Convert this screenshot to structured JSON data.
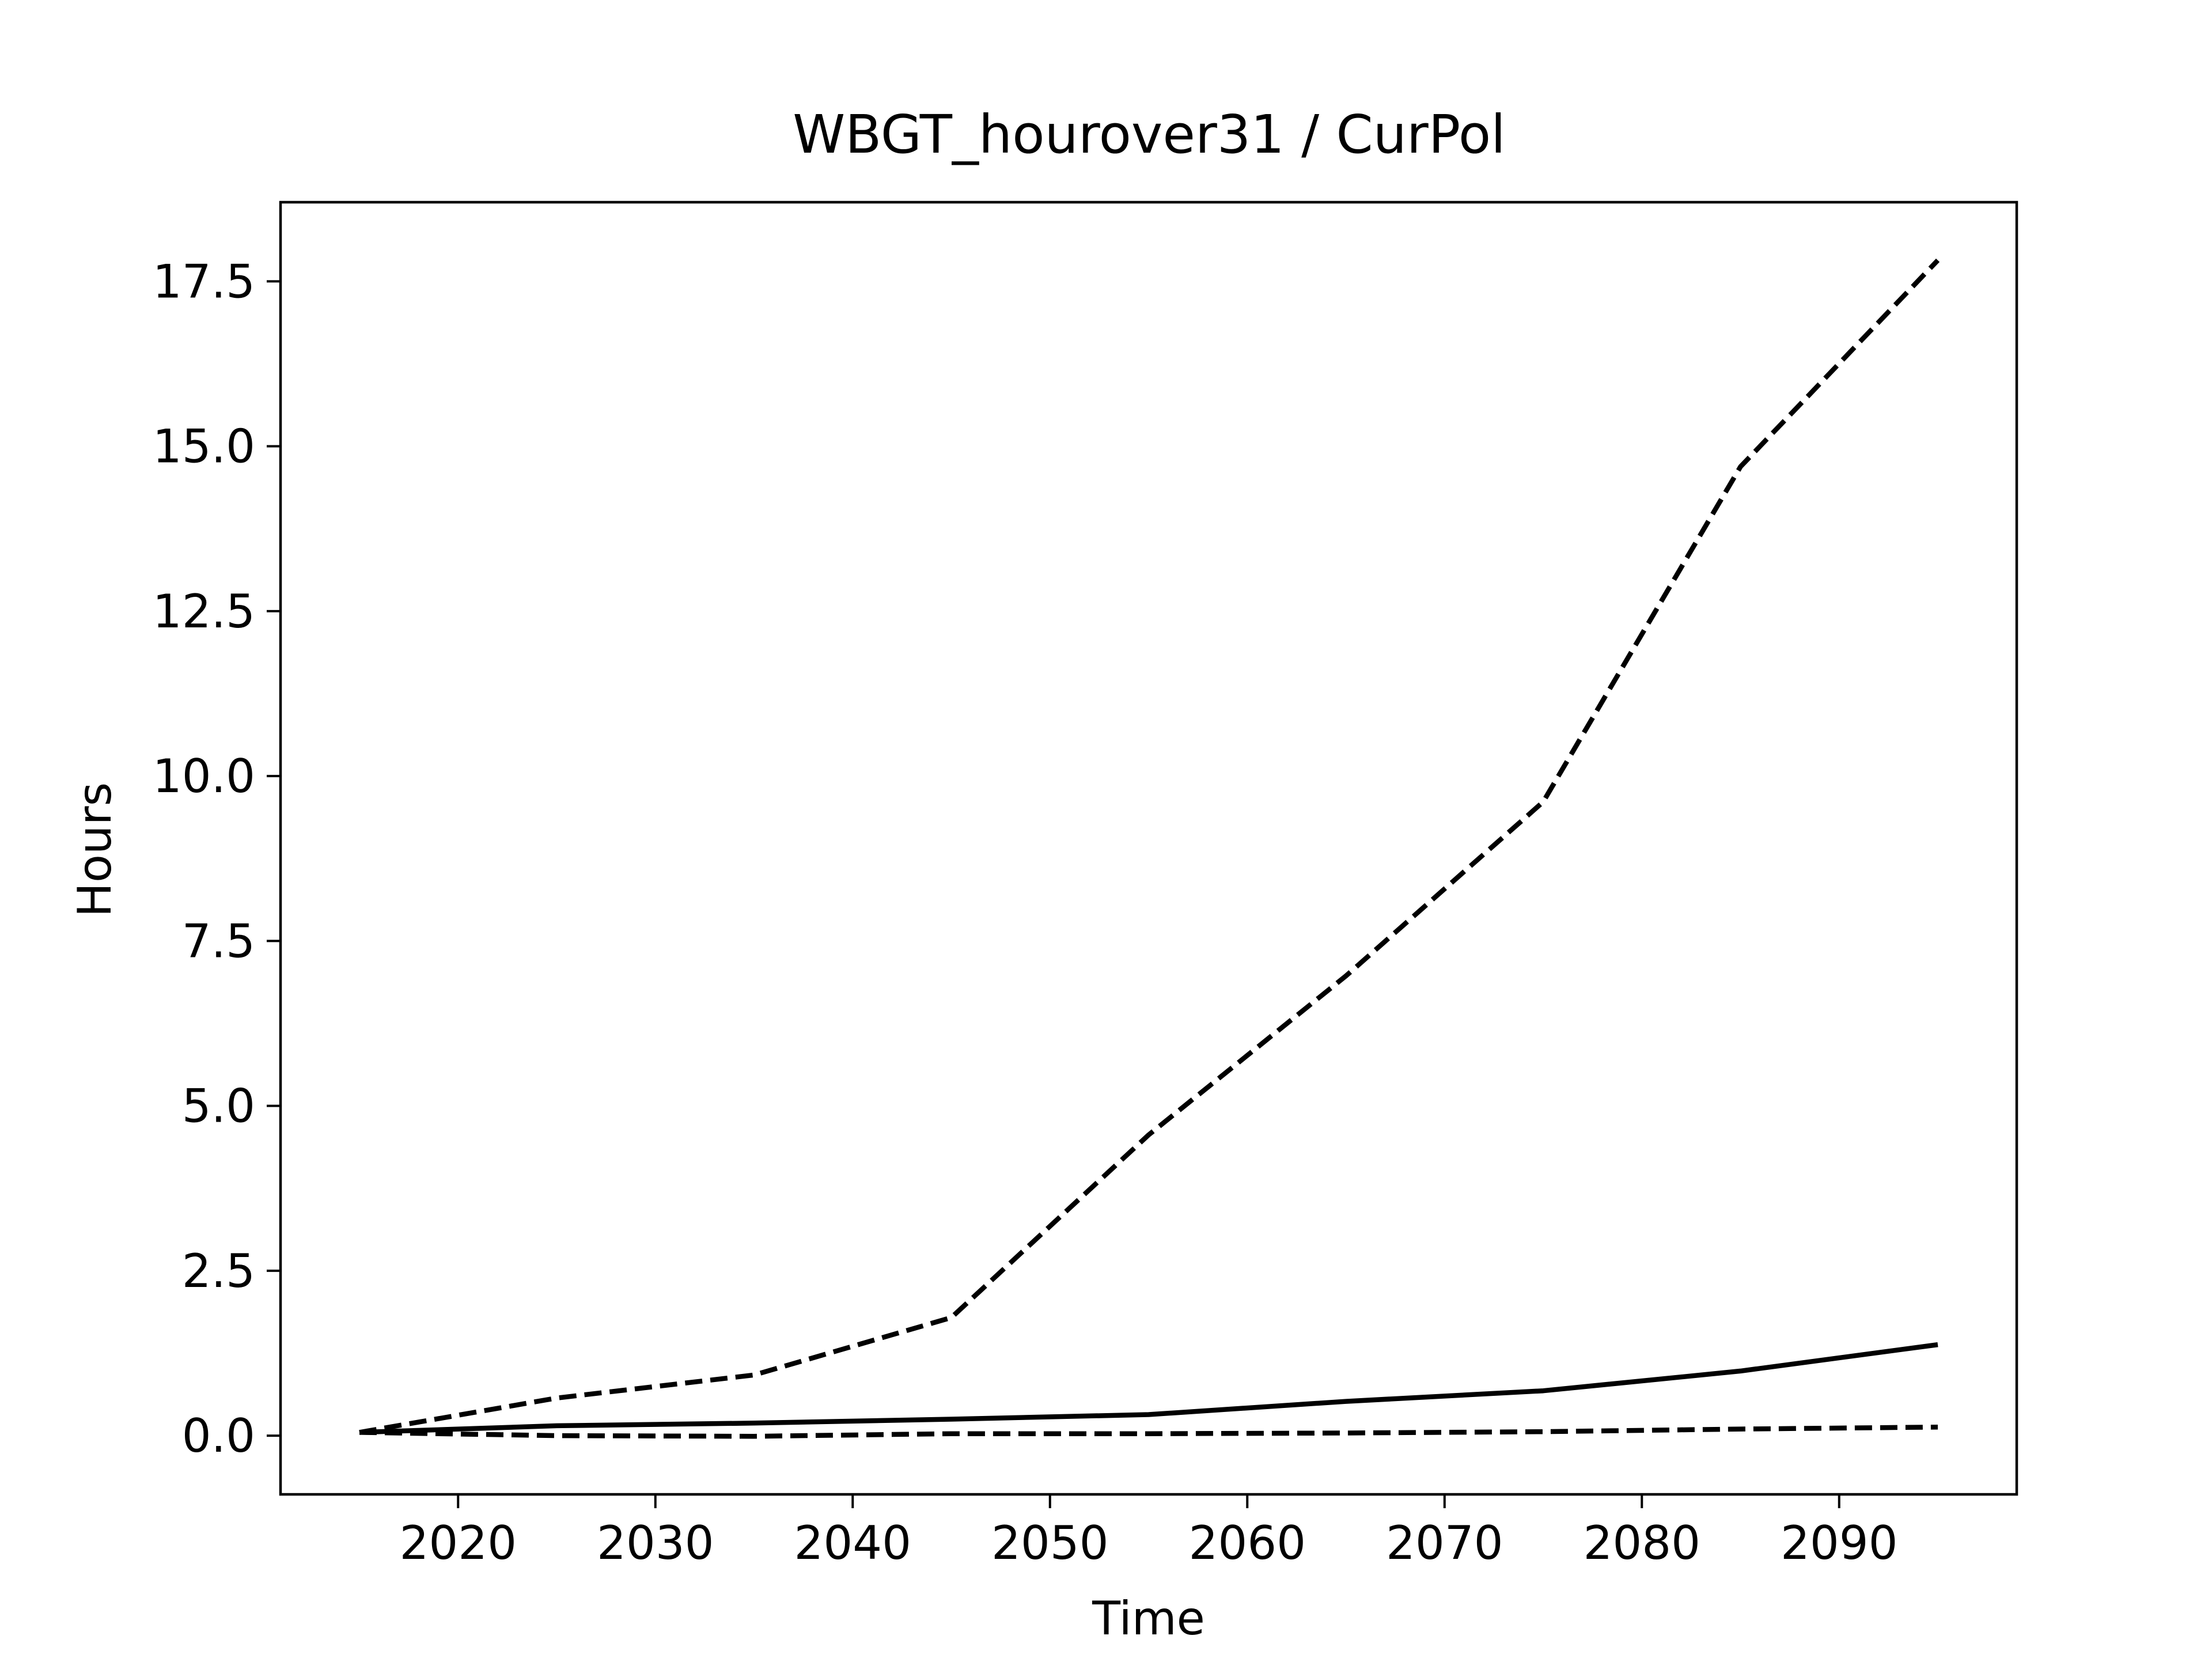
{
  "chart_data": {
    "type": "line",
    "title": "WBGT_hourover31 / CurPol",
    "xlabel": "Time",
    "ylabel": "Hours",
    "xlim": [
      2011,
      2099
    ],
    "ylim": [
      -0.89,
      18.7
    ],
    "xticks": [
      2020,
      2030,
      2040,
      2050,
      2060,
      2070,
      2080,
      2090
    ],
    "xtick_labels": [
      "2020",
      "2030",
      "2040",
      "2050",
      "2060",
      "2070",
      "2080",
      "2090"
    ],
    "yticks": [
      0,
      2.5,
      5,
      7.5,
      10,
      12.5,
      15,
      17.5
    ],
    "ytick_labels": [
      "0.0",
      "2.5",
      "5.0",
      "7.5",
      "10.0",
      "12.5",
      "15.0",
      "17.5"
    ],
    "grid": false,
    "legend": "none",
    "x": [
      2015,
      2025,
      2035,
      2045,
      2055,
      2065,
      2075,
      2085,
      2095
    ],
    "series": [
      {
        "line_style": "dashed",
        "color": "#000000",
        "values": [
          0.05,
          0.57,
          0.92,
          1.79,
          4.56,
          6.97,
          9.61,
          14.69,
          17.82
        ]
      },
      {
        "line_style": "solid",
        "color": "#000000",
        "values": [
          0.05,
          0.15,
          0.19,
          0.25,
          0.32,
          0.52,
          0.68,
          0.98,
          1.38
        ]
      },
      {
        "line_style": "dashed",
        "color": "#000000",
        "values": [
          0.05,
          0.0,
          -0.01,
          0.03,
          0.03,
          0.04,
          0.06,
          0.1,
          0.13
        ]
      }
    ]
  }
}
